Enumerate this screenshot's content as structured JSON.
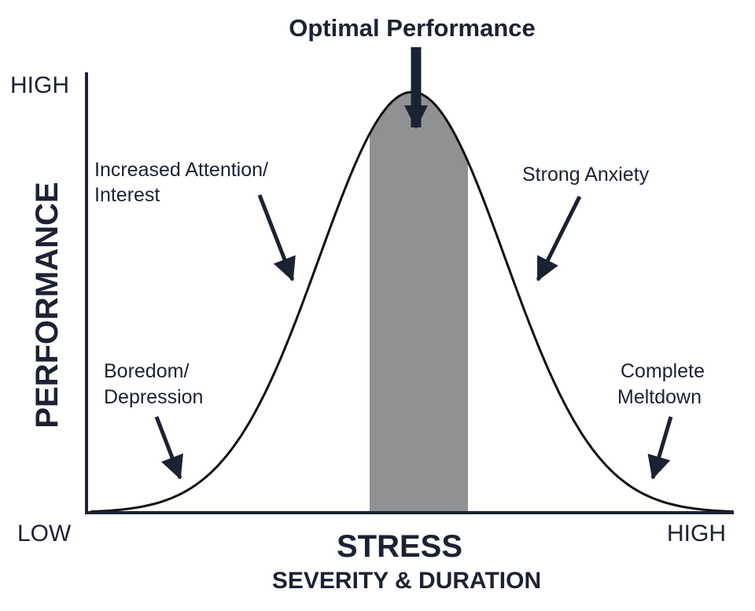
{
  "title": "Optimal Performance",
  "y_axis": {
    "label": "PERFORMANCE",
    "high_label": "HIGH",
    "low_label": "LOW"
  },
  "x_axis": {
    "label": "STRESS",
    "sublabel": "SEVERITY & DURATION",
    "high_label": "HIGH"
  },
  "annotations": {
    "increased_line1": "Increased Attention/",
    "increased_line2": "Interest",
    "anxiety": "Strong Anxiety",
    "boredom_line1": "Boredom/",
    "boredom_line2": "Depression",
    "meltdown_line1": "Complete",
    "meltdown_line2": "Meltdown"
  },
  "colors": {
    "ink": "#1d2233",
    "optimal_zone": "#8f9192",
    "background": "#ffffff"
  }
}
